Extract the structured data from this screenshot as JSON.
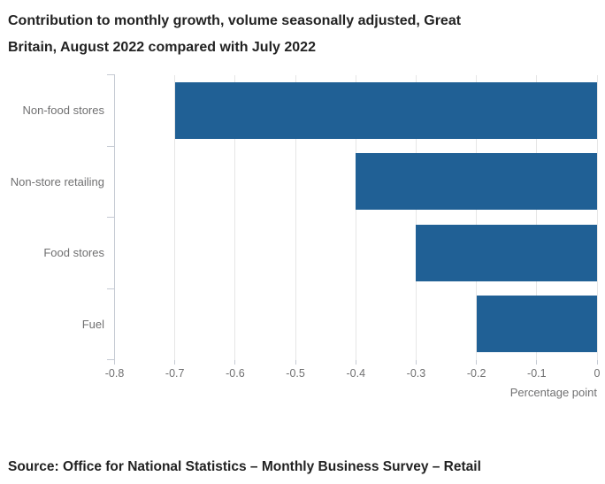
{
  "header": {
    "title_line1": "Contribution to monthly growth, volume seasonally adjusted, Great",
    "title_line2": "Britain, August 2022 compared with July 2022"
  },
  "footer": {
    "source": "Source: Office for National Statistics – Monthly Business Survey – Retail"
  },
  "colors": {
    "bar": "#206095",
    "title_text": "#222222",
    "axis_text": "#707071",
    "gridline": "#e6e6e6",
    "axis_line": "#c5cad3"
  },
  "chart_data": {
    "type": "bar",
    "orientation": "horizontal",
    "title": "Contribution to monthly growth, volume seasonally adjusted, Great Britain, August 2022 compared with July 2022",
    "categories": [
      "Non-food stores",
      "Non-store retailing",
      "Food stores",
      "Fuel"
    ],
    "values": [
      -0.7,
      -0.4,
      -0.3,
      -0.2
    ],
    "xlabel": "Percentage point",
    "ylabel": "",
    "xlim": [
      -0.8,
      0
    ],
    "xticks": [
      -0.8,
      -0.7,
      -0.6,
      -0.5,
      -0.4,
      -0.3,
      -0.2,
      -0.1,
      0
    ],
    "xtick_labels": [
      "-0.8",
      "-0.7",
      "-0.6",
      "-0.5",
      "-0.4",
      "-0.3",
      "-0.2",
      "-0.1",
      "0"
    ],
    "grid": true,
    "legend": false,
    "bar_color": "#206095"
  }
}
